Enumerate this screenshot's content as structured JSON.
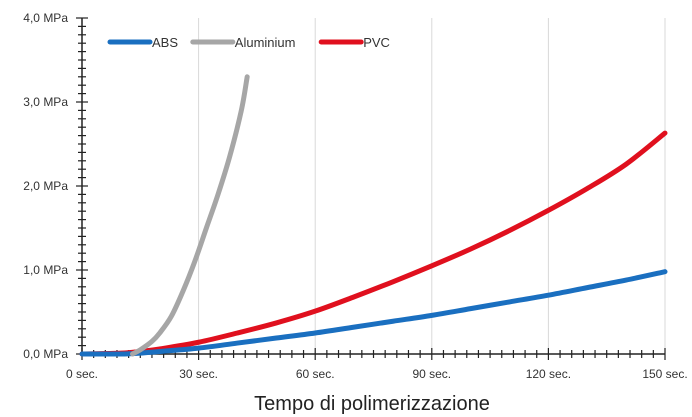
{
  "chart_data": {
    "type": "line",
    "title": "",
    "xlabel": "Tempo di polimerizzazione",
    "ylabel": "",
    "x_tick_labels": [
      "0 sec.",
      "30 sec.",
      "60 sec.",
      "90 sec.",
      "120 sec.",
      "150 sec."
    ],
    "x_ticks": [
      0,
      30,
      60,
      90,
      120,
      150
    ],
    "y_tick_labels": [
      "0,0 MPa",
      "1,0 MPa",
      "2,0 MPa",
      "3,0 MPa",
      "4,0 MPa"
    ],
    "y_ticks": [
      0,
      1,
      2,
      3,
      4
    ],
    "xlim": [
      0,
      150
    ],
    "ylim": [
      0,
      4
    ],
    "grid": "vertical",
    "legend_position": "top-left",
    "series": [
      {
        "name": "ABS",
        "color": "#1a6fc0",
        "x": [
          0,
          10,
          15,
          20,
          30,
          40,
          50,
          60,
          70,
          80,
          90,
          100,
          110,
          120,
          130,
          140,
          150
        ],
        "y": [
          0,
          0,
          0.01,
          0.03,
          0.07,
          0.13,
          0.19,
          0.25,
          0.32,
          0.39,
          0.46,
          0.54,
          0.62,
          0.7,
          0.79,
          0.88,
          0.98
        ]
      },
      {
        "name": "Aluminium",
        "color": "#a6a6a6",
        "x": [
          13,
          15,
          18,
          20,
          23,
          26,
          29,
          32,
          35,
          38,
          41,
          42.5
        ],
        "y": [
          0,
          0.05,
          0.15,
          0.25,
          0.45,
          0.75,
          1.1,
          1.5,
          1.9,
          2.35,
          2.9,
          3.3
        ]
      },
      {
        "name": "PVC",
        "color": "#e0101e",
        "x": [
          0,
          10,
          15,
          20,
          30,
          40,
          50,
          60,
          70,
          80,
          90,
          100,
          110,
          120,
          130,
          140,
          150
        ],
        "y": [
          0,
          0.01,
          0.03,
          0.06,
          0.14,
          0.25,
          0.37,
          0.51,
          0.68,
          0.86,
          1.05,
          1.25,
          1.47,
          1.71,
          1.97,
          2.26,
          2.63
        ]
      }
    ]
  }
}
